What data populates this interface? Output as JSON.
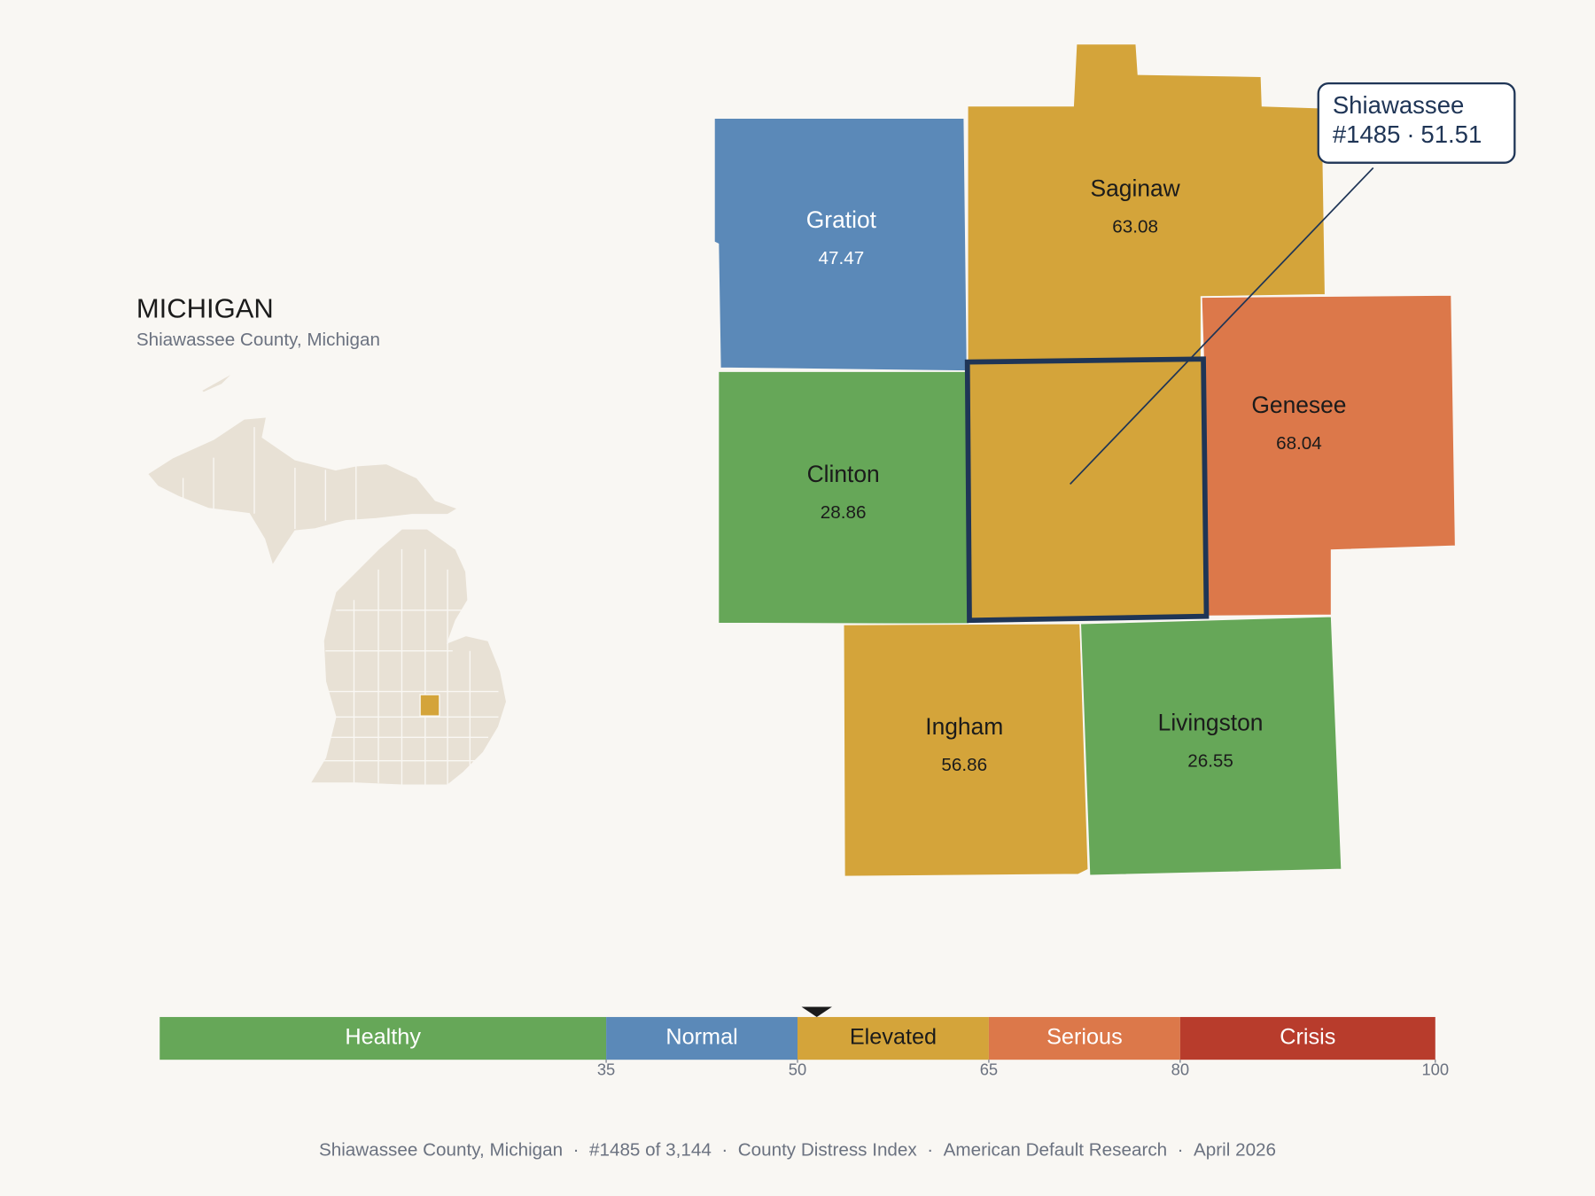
{
  "header": {
    "title": "MICHIGAN",
    "subtitle": "Shiawassee County, Michigan"
  },
  "counties": [
    {
      "name": "Gratiot",
      "value": 47.47
    },
    {
      "name": "Saginaw",
      "value": 63.08
    },
    {
      "name": "Genesee",
      "value": 68.04
    },
    {
      "name": "Clinton",
      "value": 28.86
    },
    {
      "name": "Ingham",
      "value": 56.86
    },
    {
      "name": "Livingston",
      "value": 26.55
    }
  ],
  "callout": {
    "name": "Shiawassee",
    "rank": "#1485",
    "separator": "·",
    "value": 51.51
  },
  "scale": {
    "range": [
      0,
      100
    ],
    "bands": [
      {
        "label": "Healthy",
        "from": 0,
        "to": 35,
        "color": "#66a758"
      },
      {
        "label": "Normal",
        "from": 35,
        "to": 50,
        "color": "#5b89b8"
      },
      {
        "label": "Elevated",
        "from": 50,
        "to": 65,
        "color": "#d4a43a"
      },
      {
        "label": "Serious",
        "from": 65,
        "to": 80,
        "color": "#dc784a"
      },
      {
        "label": "Crisis",
        "from": 80,
        "to": 100,
        "color": "#b83c2c"
      }
    ],
    "ticks": [
      35,
      50,
      65,
      80,
      100
    ]
  },
  "footer": {
    "items": [
      "Shiawassee County, Michigan",
      "#1485 of 3,144",
      "County Distress Index",
      "American Default Research",
      "April 2026"
    ],
    "separator": "·"
  }
}
